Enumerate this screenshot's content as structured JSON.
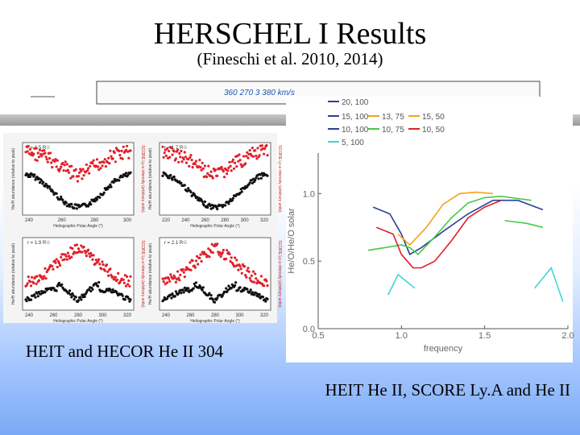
{
  "slide": {
    "title": "HERSCHEL I Results",
    "subtitle": "(Fineschi et al. 2010, 2014)",
    "caption_left": "HEIT and HECOR He II 304",
    "caption_right": "HEIT He II, SCORE Ly.A and He II"
  },
  "strip": {
    "label": "360 270 3 380 km/s"
  },
  "colors": {
    "red": "#e0202a",
    "black": "#111111",
    "legend_blue": "#2a3f9a",
    "legend_orange": "#f2a31b",
    "legend_green": "#44cc44",
    "legend_cyan": "#3fd6d6"
  },
  "left_panels": [
    {
      "top_label": "r = 1.5 R☉",
      "xlabel": "Heliographic Polar Angle (°)",
      "xticks": [
        "240",
        "260",
        "280",
        "300"
      ],
      "left_ylabel": "He/H abundance (relative to peak)",
      "right_ylabel": "SCORE Ly-a intensity (arbitrary units)"
    },
    {
      "top_label": "r = 1.7 R☉",
      "xlabel": "Heliographic Polar Angle (°)",
      "xticks": [
        "220",
        "240",
        "260",
        "280",
        "300",
        "320"
      ],
      "left_ylabel": "He/H abundance (relative to peak)",
      "right_ylabel": "SCORE Ly-a intensity (arbitrary units)"
    },
    {
      "top_label": "r = 1.9 R☉",
      "xlabel": "Heliographic Polar Angle (°)",
      "xticks": [
        "240",
        "260",
        "280",
        "300",
        "320"
      ],
      "left_ylabel": "He/H abundance (relative to peak)",
      "right_ylabel": "SCORE Ly-a intensity (arbitrary units)"
    },
    {
      "top_label": "r = 2.1 R☉",
      "xlabel": "Heliographic Polar Angle (°)",
      "xticks": [
        "240",
        "260",
        "280",
        "300",
        "320"
      ],
      "left_ylabel": "He/H abundance (relative to peak)",
      "right_ylabel": "SCORE Ly-a intensity (arbitrary units)"
    }
  ],
  "chart_data": {
    "type": "line",
    "xlabel": "frequency",
    "ylabel": "He/O/He/O solar",
    "xlim": [
      0.5,
      2.0
    ],
    "ylim": [
      0.0,
      1.3
    ],
    "xticks": [
      "0.5",
      "1.0",
      "1.5",
      "2.0"
    ],
    "yticks": [
      "0.0",
      "0.5",
      "1.0"
    ],
    "legend": [
      {
        "label": "20, 100",
        "color": "#2a3f9a"
      },
      {
        "label": "15, 100",
        "color": "#2a3f9a"
      },
      {
        "label": "13, 75",
        "color": "#f2a31b"
      },
      {
        "label": "15, 50",
        "color": "#f2a31b"
      },
      {
        "label": "10, 100",
        "color": "#2a3f9a"
      },
      {
        "label": "10, 75",
        "color": "#44cc44"
      },
      {
        "label": "10, 50",
        "color": "#e0202a"
      },
      {
        "label": "5, 100",
        "color": "#3fd6d6"
      }
    ],
    "series": [
      {
        "color": "#2a3f9a",
        "x": [
          0.83,
          0.93,
          1.0,
          1.05,
          1.12,
          1.25,
          1.4,
          1.55,
          1.7,
          1.85
        ],
        "y": [
          0.9,
          0.85,
          0.7,
          0.55,
          0.6,
          0.72,
          0.85,
          0.95,
          0.95,
          0.88
        ]
      },
      {
        "color": "#f2a31b",
        "x": [
          0.98,
          1.05,
          1.15,
          1.25,
          1.35,
          1.45,
          1.55
        ],
        "y": [
          0.7,
          0.62,
          0.75,
          0.92,
          1.0,
          1.01,
          1.0
        ]
      },
      {
        "color": "#44cc44",
        "x": [
          0.8,
          0.9,
          1.0,
          1.05,
          1.1,
          1.2,
          1.3,
          1.4,
          1.5,
          1.6,
          1.78
        ],
        "y": [
          0.58,
          0.6,
          0.62,
          0.6,
          0.55,
          0.68,
          0.82,
          0.93,
          0.97,
          0.98,
          0.95
        ]
      },
      {
        "color": "#e0202a",
        "x": [
          0.85,
          0.95,
          1.0,
          1.07,
          1.12,
          1.2,
          1.3,
          1.4,
          1.5,
          1.6
        ],
        "y": [
          0.75,
          0.7,
          0.55,
          0.45,
          0.45,
          0.5,
          0.65,
          0.82,
          0.9,
          0.95
        ]
      },
      {
        "color": "#3fd6d6",
        "x": [
          0.92,
          0.98,
          1.08
        ],
        "y": [
          0.25,
          0.4,
          0.3
        ]
      },
      {
        "color": "#44cc44",
        "x": [
          1.62,
          1.75,
          1.85
        ],
        "y": [
          0.8,
          0.78,
          0.75
        ]
      },
      {
        "color": "#3fd6d6",
        "x": [
          1.8,
          1.9,
          1.97
        ],
        "y": [
          0.3,
          0.45,
          0.2
        ]
      }
    ]
  }
}
